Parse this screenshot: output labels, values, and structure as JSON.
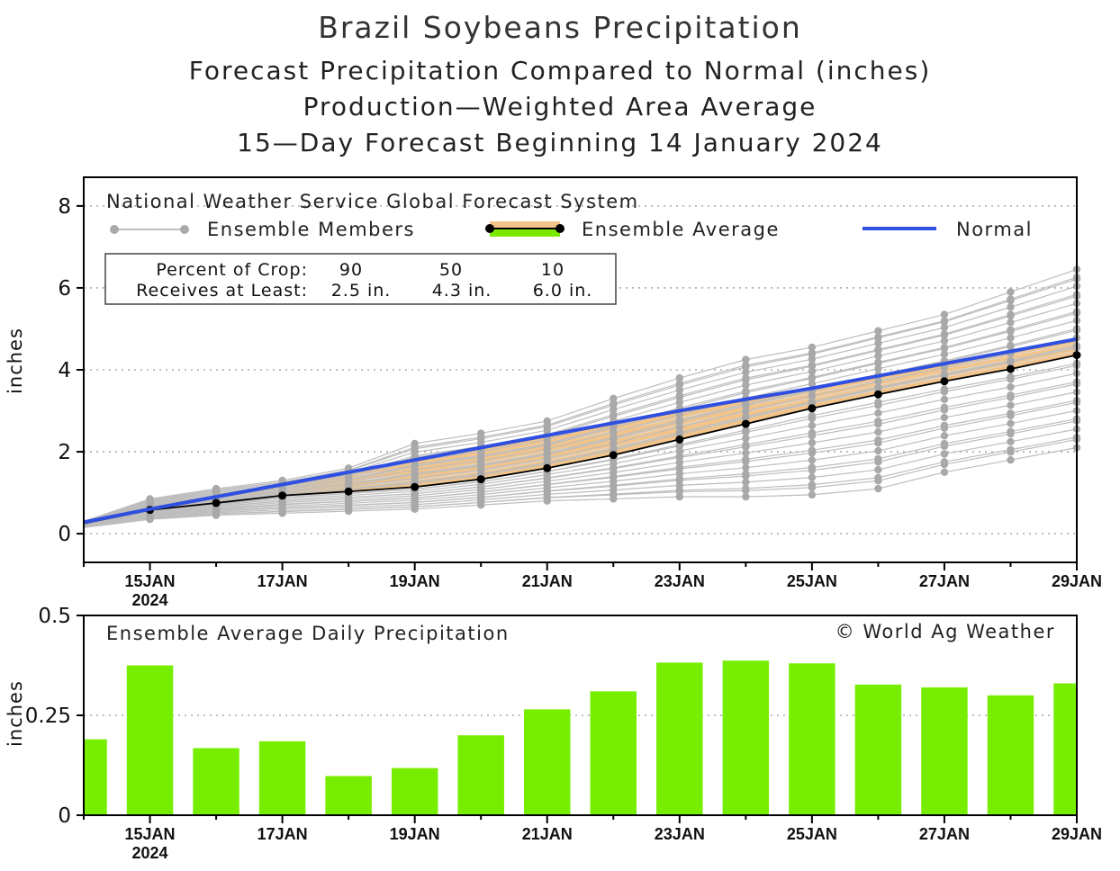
{
  "colors": {
    "normal": "#2f4fe0",
    "band": "#f3c489",
    "member": "#bdbdbd",
    "member_dot": "#a9a9a9",
    "avg": "#000000",
    "bar": "#77ee00",
    "legend_green": "#7be800"
  },
  "legend": {
    "model": "National Weather Service Global Forecast System",
    "members": "Ensemble Members",
    "average": "Ensemble Average",
    "normal": "Normal"
  },
  "crop_box": {
    "row1_label": "Percent of Crop:",
    "row2_label": "Receives at Least:",
    "percents": [
      "90",
      "50",
      "10"
    ],
    "amounts": [
      "2.5 in.",
      "4.3 in.",
      "6.0 in."
    ]
  },
  "chart_data": [
    {
      "type": "line",
      "title": "Brazil Soybeans Precipitation",
      "subtitles": [
        "Forecast Precipitation Compared to Normal (inches)",
        "Production—Weighted Area Average",
        "15—Day Forecast Beginning 14 January 2024"
      ],
      "ylabel": "inches",
      "ylim": [
        -0.7,
        8.7
      ],
      "yticks": [
        0,
        2,
        4,
        6,
        8
      ],
      "x": [
        14,
        15,
        16,
        17,
        18,
        19,
        20,
        21,
        22,
        23,
        24,
        25,
        26,
        27,
        28,
        29
      ],
      "xlim": [
        14,
        29
      ],
      "xticks": [
        {
          "x": 15,
          "label": "15JAN",
          "sub": "2024"
        },
        {
          "x": 17,
          "label": "17JAN"
        },
        {
          "x": 19,
          "label": "19JAN"
        },
        {
          "x": 21,
          "label": "21JAN"
        },
        {
          "x": 23,
          "label": "23JAN"
        },
        {
          "x": 25,
          "label": "25JAN"
        },
        {
          "x": 27,
          "label": "27JAN"
        },
        {
          "x": 29,
          "label": "29JAN"
        }
      ],
      "grid": true,
      "series": [
        {
          "name": "Normal",
          "values": [
            0.28,
            0.6,
            0.9,
            1.2,
            1.5,
            1.8,
            2.1,
            2.4,
            2.7,
            3.0,
            3.28,
            3.55,
            3.85,
            4.15,
            4.45,
            4.75
          ]
        },
        {
          "name": "Ensemble Average",
          "values": [
            0.25,
            0.58,
            0.75,
            0.93,
            1.03,
            1.14,
            1.33,
            1.6,
            1.92,
            2.3,
            2.68,
            3.06,
            3.4,
            3.72,
            4.02,
            4.36
          ]
        }
      ],
      "members_range": {
        "min": [
          0.15,
          0.35,
          0.45,
          0.5,
          0.55,
          0.6,
          0.7,
          0.8,
          0.85,
          0.9,
          0.9,
          0.95,
          1.1,
          1.5,
          1.8,
          2.1
        ],
        "max": [
          0.3,
          0.85,
          1.1,
          1.3,
          1.6,
          2.2,
          2.45,
          2.75,
          3.3,
          3.8,
          4.25,
          4.55,
          4.95,
          5.35,
          5.9,
          6.45
        ]
      },
      "annotations": [
        "National Weather Service Global Forecast System"
      ]
    },
    {
      "type": "bar",
      "title": "Ensemble Average Daily Precipitation",
      "ylabel": "inches",
      "ylim": [
        0,
        0.5
      ],
      "yticks": [
        0,
        0.25,
        0.5
      ],
      "ytick_labels": [
        "0",
        "0.25",
        "0.5"
      ],
      "categories": [
        "14JAN",
        "15JAN",
        "16JAN",
        "17JAN",
        "18JAN",
        "19JAN",
        "20JAN",
        "21JAN",
        "22JAN",
        "23JAN",
        "24JAN",
        "25JAN",
        "26JAN",
        "27JAN",
        "28JAN",
        "29JAN"
      ],
      "x": [
        14,
        15,
        16,
        17,
        18,
        19,
        20,
        21,
        22,
        23,
        24,
        25,
        26,
        27,
        28,
        29
      ],
      "values": [
        0.19,
        0.375,
        0.168,
        0.185,
        0.098,
        0.118,
        0.2,
        0.265,
        0.31,
        0.382,
        0.387,
        0.38,
        0.327,
        0.32,
        0.3,
        0.33
      ],
      "credit": "© World Ag Weather",
      "grid": true
    }
  ]
}
